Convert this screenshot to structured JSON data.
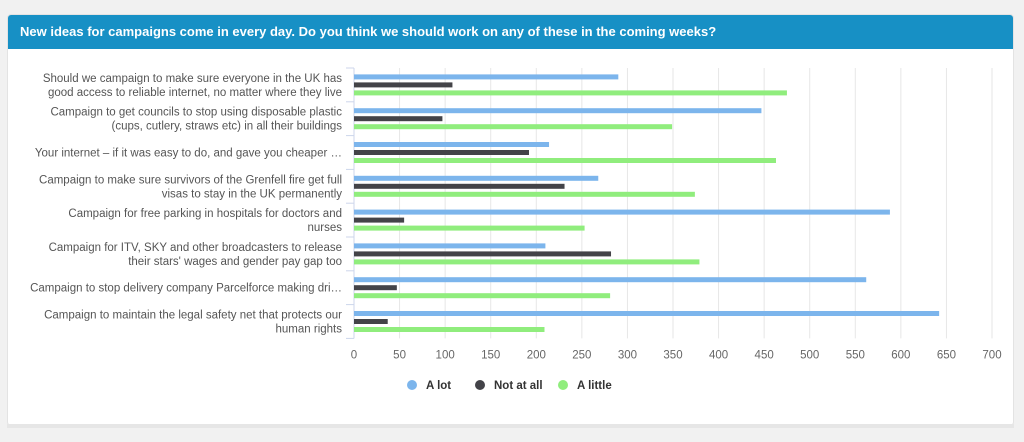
{
  "header": {
    "title": "New ideas for campaigns come in every day. Do you think we should work on any of these in the coming weeks?"
  },
  "chart_data": {
    "type": "bar",
    "orientation": "horizontal",
    "categories": [
      [
        "Should we campaign to make sure everyone in the UK has",
        "good access to reliable internet, no matter where they live"
      ],
      [
        "Campaign to get councils to stop using disposable plastic",
        "(cups, cutlery, straws etc) in all their buildings"
      ],
      [
        "Your internet – if it was easy to do, and gave you cheaper …"
      ],
      [
        "Campaign to make sure survivors of the Grenfell fire get full",
        "visas to stay in the UK permanently"
      ],
      [
        "Campaign for free parking in hospitals for doctors and",
        "nurses"
      ],
      [
        "Campaign for ITV, SKY and other broadcasters to release",
        "their stars' wages and gender pay gap too"
      ],
      [
        "Campaign to stop delivery company Parcelforce making dri…"
      ],
      [
        "Campaign to maintain the legal safety net that protects our",
        "human rights"
      ]
    ],
    "series": [
      {
        "name": "A lot",
        "color": "#7cb5ec",
        "values": [
          290,
          447,
          214,
          268,
          588,
          210,
          562,
          642
        ]
      },
      {
        "name": "Not at all",
        "color": "#434348",
        "values": [
          108,
          97,
          192,
          231,
          55,
          282,
          47,
          37
        ]
      },
      {
        "name": "A little",
        "color": "#90ed7d",
        "values": [
          475,
          349,
          463,
          374,
          253,
          379,
          281,
          209
        ]
      }
    ],
    "xlim": [
      0,
      700
    ],
    "xticks": [
      0,
      50,
      100,
      150,
      200,
      250,
      300,
      350,
      400,
      450,
      500,
      550,
      600,
      650,
      700
    ],
    "grid": true,
    "legend_position": "bottom-center"
  }
}
